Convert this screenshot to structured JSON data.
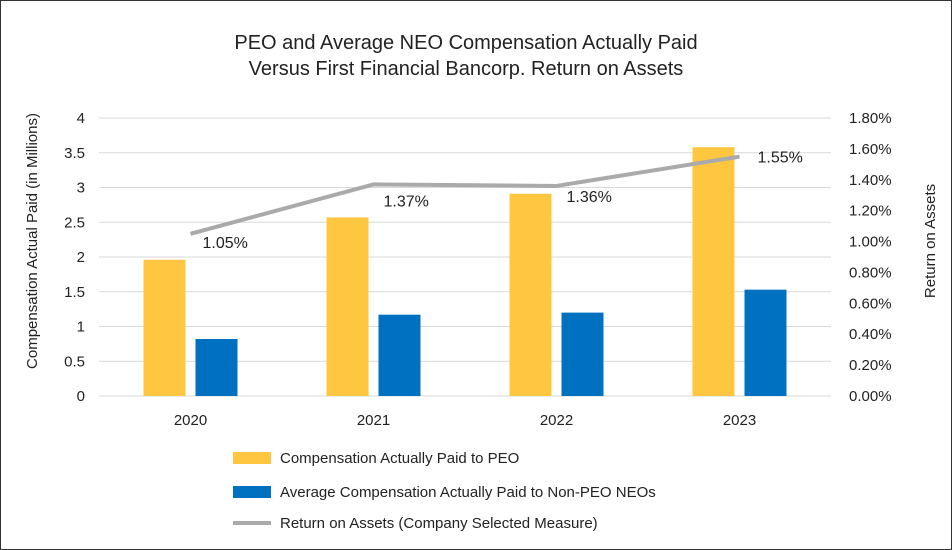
{
  "chart_data": {
    "type": "bar",
    "title": [
      "PEO and Average NEO Compensation Actually Paid",
      "Versus First Financial Bancorp. Return on Assets"
    ],
    "categories": [
      "2020",
      "2021",
      "2022",
      "2023"
    ],
    "ylabel": "Compensation Actual Paid (in Millions)",
    "y2label": "Return on Assets",
    "ylim": [
      0,
      4
    ],
    "yticks": [
      "0",
      "0.5",
      "1",
      "1.5",
      "2",
      "2.5",
      "3",
      "3.5",
      "4"
    ],
    "y2lim": [
      0,
      1.8
    ],
    "y2ticks": [
      "0.00%",
      "0.20%",
      "0.40%",
      "0.60%",
      "0.80%",
      "1.00%",
      "1.20%",
      "1.40%",
      "1.60%",
      "1.80%"
    ],
    "series": [
      {
        "name": "Compensation Actually Paid to PEO",
        "kind": "bar",
        "axis": "left",
        "color": "#FFC740",
        "values": [
          1.96,
          2.57,
          2.91,
          3.58
        ]
      },
      {
        "name": "Average Compensation Actually Paid to Non-PEO NEOs",
        "kind": "bar",
        "axis": "left",
        "color": "#0070C0",
        "values": [
          0.82,
          1.17,
          1.2,
          1.53
        ]
      },
      {
        "name": "Return on Assets (Company Selected Measure)",
        "kind": "line",
        "axis": "right",
        "color": "#AAAAAA",
        "values": [
          1.05,
          1.37,
          1.36,
          1.55
        ],
        "labels": [
          "1.05%",
          "1.37%",
          "1.36%",
          "1.55%"
        ]
      }
    ],
    "grid": true,
    "legend": "bottom"
  }
}
